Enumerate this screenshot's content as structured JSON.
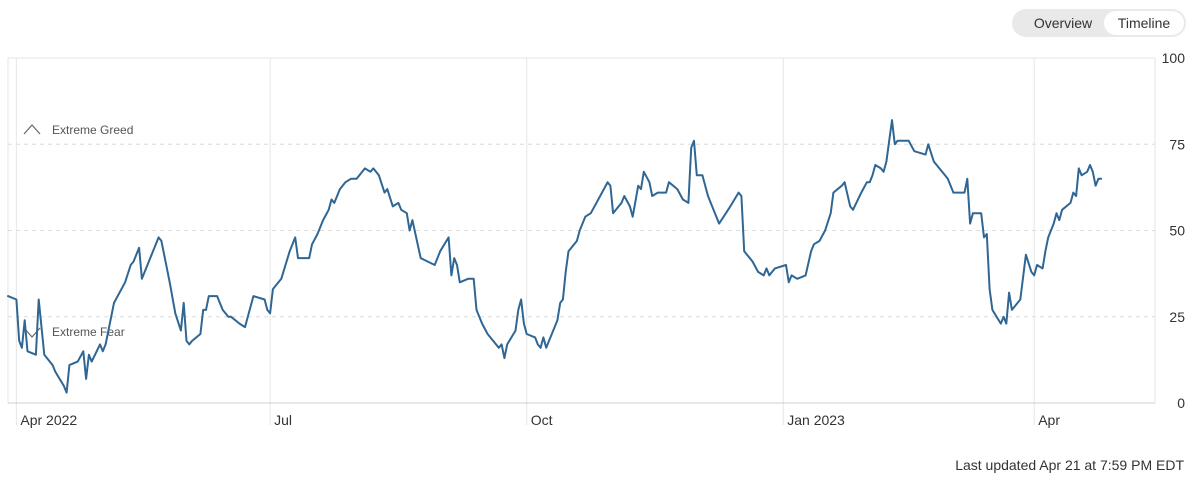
{
  "view_toggle": {
    "overview_label": "Overview",
    "timeline_label": "Timeline",
    "selected": "Timeline"
  },
  "footer": {
    "last_updated": "Last updated Apr 21 at 7:59 PM EDT"
  },
  "colors": {
    "line": "#2f6693",
    "grid": "#e6e6e6",
    "dash": "#dcdcdc",
    "zone_text": "#555555"
  },
  "chart_data": {
    "type": "line",
    "title": "",
    "xlabel": "",
    "ylabel": "",
    "ylim": [
      0,
      100
    ],
    "y_ticks": [
      0,
      25,
      50,
      75,
      100
    ],
    "x_range": [
      "2022-03-29",
      "2023-04-21"
    ],
    "x_ticks": [
      {
        "date": "2022-04-01",
        "label": "Apr 2022"
      },
      {
        "date": "2022-07-01",
        "label": "Jul"
      },
      {
        "date": "2022-10-01",
        "label": "Oct"
      },
      {
        "date": "2023-01-01",
        "label": "Jan 2023"
      },
      {
        "date": "2023-04-01",
        "label": "Apr"
      }
    ],
    "zones": [
      {
        "label": "Extreme Greed",
        "direction": "up"
      },
      {
        "label": "Extreme Fear",
        "direction": "down"
      }
    ],
    "grid": {
      "vertical": true,
      "horizontal_dashed": [
        25,
        50,
        75
      ]
    },
    "series": [
      {
        "points": [
          [
            "2022-03-29",
            31
          ],
          [
            "2022-04-01",
            30
          ],
          [
            "2022-04-02",
            18
          ],
          [
            "2022-04-03",
            16
          ],
          [
            "2022-04-04",
            24
          ],
          [
            "2022-04-05",
            15
          ],
          [
            "2022-04-08",
            14
          ],
          [
            "2022-04-09",
            30
          ],
          [
            "2022-04-11",
            14
          ],
          [
            "2022-04-14",
            11
          ],
          [
            "2022-04-15",
            9
          ],
          [
            "2022-04-18",
            5
          ],
          [
            "2022-04-19",
            3
          ],
          [
            "2022-04-20",
            11
          ],
          [
            "2022-04-23",
            12
          ],
          [
            "2022-04-25",
            15
          ],
          [
            "2022-04-26",
            7
          ],
          [
            "2022-04-27",
            14
          ],
          [
            "2022-04-28",
            12
          ],
          [
            "2022-05-01",
            17
          ],
          [
            "2022-05-02",
            15
          ],
          [
            "2022-05-03",
            17
          ],
          [
            "2022-05-06",
            29
          ],
          [
            "2022-05-10",
            35
          ],
          [
            "2022-05-12",
            40
          ],
          [
            "2022-05-13",
            41
          ],
          [
            "2022-05-15",
            45
          ],
          [
            "2022-05-16",
            36
          ],
          [
            "2022-05-20",
            44
          ],
          [
            "2022-05-22",
            48
          ],
          [
            "2022-05-23",
            47
          ],
          [
            "2022-05-26",
            35
          ],
          [
            "2022-05-28",
            26
          ],
          [
            "2022-05-30",
            21
          ],
          [
            "2022-05-31",
            29
          ],
          [
            "2022-06-01",
            18
          ],
          [
            "2022-06-02",
            17
          ],
          [
            "2022-06-03",
            18
          ],
          [
            "2022-06-06",
            20
          ],
          [
            "2022-06-07",
            27
          ],
          [
            "2022-06-08",
            27
          ],
          [
            "2022-06-09",
            31
          ],
          [
            "2022-06-12",
            31
          ],
          [
            "2022-06-14",
            27
          ],
          [
            "2022-06-16",
            25
          ],
          [
            "2022-06-17",
            25
          ],
          [
            "2022-06-20",
            23
          ],
          [
            "2022-06-22",
            22
          ],
          [
            "2022-06-25",
            31
          ],
          [
            "2022-06-29",
            30
          ],
          [
            "2022-06-30",
            27
          ],
          [
            "2022-07-01",
            26
          ],
          [
            "2022-07-02",
            33
          ],
          [
            "2022-07-05",
            36
          ],
          [
            "2022-07-08",
            44
          ],
          [
            "2022-07-10",
            48
          ],
          [
            "2022-07-11",
            42
          ],
          [
            "2022-07-15",
            42
          ],
          [
            "2022-07-16",
            46
          ],
          [
            "2022-07-18",
            49
          ],
          [
            "2022-07-20",
            53
          ],
          [
            "2022-07-22",
            56
          ],
          [
            "2022-07-23",
            59
          ],
          [
            "2022-07-24",
            58
          ],
          [
            "2022-07-26",
            62
          ],
          [
            "2022-07-28",
            64
          ],
          [
            "2022-07-30",
            65
          ],
          [
            "2022-08-01",
            65
          ],
          [
            "2022-08-02",
            66
          ],
          [
            "2022-08-04",
            68
          ],
          [
            "2022-08-06",
            67
          ],
          [
            "2022-08-07",
            68
          ],
          [
            "2022-08-09",
            66
          ],
          [
            "2022-08-11",
            61
          ],
          [
            "2022-08-12",
            62
          ],
          [
            "2022-08-14",
            57
          ],
          [
            "2022-08-16",
            58
          ],
          [
            "2022-08-17",
            56
          ],
          [
            "2022-08-19",
            55
          ],
          [
            "2022-08-20",
            50
          ],
          [
            "2022-08-21",
            53
          ],
          [
            "2022-08-24",
            42
          ],
          [
            "2022-08-29",
            40
          ],
          [
            "2022-08-31",
            44
          ],
          [
            "2022-09-03",
            48
          ],
          [
            "2022-09-04",
            37
          ],
          [
            "2022-09-05",
            42
          ],
          [
            "2022-09-06",
            40
          ],
          [
            "2022-09-07",
            35
          ],
          [
            "2022-09-10",
            36
          ],
          [
            "2022-09-12",
            36
          ],
          [
            "2022-09-13",
            27
          ],
          [
            "2022-09-15",
            23
          ],
          [
            "2022-09-17",
            20
          ],
          [
            "2022-09-19",
            18
          ],
          [
            "2022-09-21",
            16
          ],
          [
            "2022-09-22",
            17
          ],
          [
            "2022-09-23",
            13
          ],
          [
            "2022-09-24",
            17
          ],
          [
            "2022-09-27",
            21
          ],
          [
            "2022-09-28",
            27
          ],
          [
            "2022-09-29",
            30
          ],
          [
            "2022-09-30",
            23
          ],
          [
            "2022-10-01",
            20
          ],
          [
            "2022-10-04",
            19
          ],
          [
            "2022-10-05",
            17
          ],
          [
            "2022-10-06",
            16
          ],
          [
            "2022-10-07",
            19
          ],
          [
            "2022-10-08",
            16
          ],
          [
            "2022-10-12",
            24
          ],
          [
            "2022-10-13",
            29
          ],
          [
            "2022-10-14",
            30
          ],
          [
            "2022-10-15",
            38
          ],
          [
            "2022-10-16",
            44
          ],
          [
            "2022-10-19",
            47
          ],
          [
            "2022-10-20",
            50
          ],
          [
            "2022-10-22",
            54
          ],
          [
            "2022-10-24",
            55
          ],
          [
            "2022-10-28",
            61
          ],
          [
            "2022-10-30",
            64
          ],
          [
            "2022-10-31",
            63
          ],
          [
            "2022-11-01",
            55
          ],
          [
            "2022-11-02",
            56
          ],
          [
            "2022-11-04",
            58
          ],
          [
            "2022-11-05",
            60
          ],
          [
            "2022-11-07",
            57
          ],
          [
            "2022-11-08",
            54
          ],
          [
            "2022-11-10",
            63
          ],
          [
            "2022-11-11",
            62
          ],
          [
            "2022-11-12",
            67
          ],
          [
            "2022-11-14",
            64
          ],
          [
            "2022-11-15",
            60
          ],
          [
            "2022-11-17",
            61
          ],
          [
            "2022-11-20",
            61
          ],
          [
            "2022-11-21",
            64
          ],
          [
            "2022-11-24",
            62
          ],
          [
            "2022-11-26",
            59
          ],
          [
            "2022-11-28",
            58
          ],
          [
            "2022-11-29",
            74
          ],
          [
            "2022-11-30",
            76
          ],
          [
            "2022-12-01",
            66
          ],
          [
            "2022-12-03",
            66
          ],
          [
            "2022-12-05",
            60
          ],
          [
            "2022-12-09",
            52
          ],
          [
            "2022-12-13",
            57
          ],
          [
            "2022-12-16",
            61
          ],
          [
            "2022-12-17",
            60
          ],
          [
            "2022-12-18",
            44
          ],
          [
            "2022-12-21",
            41
          ],
          [
            "2022-12-23",
            38
          ],
          [
            "2022-12-25",
            37
          ],
          [
            "2022-12-26",
            39
          ],
          [
            "2022-12-27",
            37
          ],
          [
            "2022-12-29",
            39
          ],
          [
            "2023-01-02",
            40
          ],
          [
            "2023-01-03",
            35
          ],
          [
            "2023-01-04",
            37
          ],
          [
            "2023-01-06",
            36
          ],
          [
            "2023-01-09",
            37
          ],
          [
            "2023-01-11",
            44
          ],
          [
            "2023-01-12",
            46
          ],
          [
            "2023-01-14",
            47
          ],
          [
            "2023-01-16",
            50
          ],
          [
            "2023-01-18",
            55
          ],
          [
            "2023-01-19",
            61
          ],
          [
            "2023-01-22",
            63
          ],
          [
            "2023-01-23",
            64
          ],
          [
            "2023-01-25",
            57
          ],
          [
            "2023-01-26",
            56
          ],
          [
            "2023-01-29",
            61
          ],
          [
            "2023-01-31",
            64
          ],
          [
            "2023-02-01",
            64
          ],
          [
            "2023-02-02",
            66
          ],
          [
            "2023-02-03",
            69
          ],
          [
            "2023-02-05",
            68
          ],
          [
            "2023-02-06",
            67
          ],
          [
            "2023-02-07",
            70
          ],
          [
            "2023-02-09",
            82
          ],
          [
            "2023-02-10",
            75
          ],
          [
            "2023-02-11",
            76
          ],
          [
            "2023-02-13",
            76
          ],
          [
            "2023-02-15",
            76
          ],
          [
            "2023-02-17",
            73
          ],
          [
            "2023-02-21",
            72
          ],
          [
            "2023-02-22",
            75
          ],
          [
            "2023-02-24",
            70
          ],
          [
            "2023-02-28",
            66
          ],
          [
            "2023-03-01",
            65
          ],
          [
            "2023-03-03",
            61
          ],
          [
            "2023-03-06",
            61
          ],
          [
            "2023-03-07",
            61
          ],
          [
            "2023-03-08",
            65
          ],
          [
            "2023-03-09",
            52
          ],
          [
            "2023-03-10",
            55
          ],
          [
            "2023-03-13",
            55
          ],
          [
            "2023-03-14",
            48
          ],
          [
            "2023-03-15",
            49
          ],
          [
            "2023-03-16",
            33
          ],
          [
            "2023-03-17",
            27
          ],
          [
            "2023-03-20",
            23
          ],
          [
            "2023-03-21",
            25
          ],
          [
            "2023-03-22",
            23
          ],
          [
            "2023-03-23",
            32
          ],
          [
            "2023-03-24",
            27
          ],
          [
            "2023-03-27",
            30
          ],
          [
            "2023-03-29",
            43
          ],
          [
            "2023-03-31",
            38
          ],
          [
            "2023-04-01",
            37
          ],
          [
            "2023-04-02",
            40
          ],
          [
            "2023-04-04",
            39
          ],
          [
            "2023-04-05",
            44
          ],
          [
            "2023-04-06",
            48
          ],
          [
            "2023-04-08",
            52
          ],
          [
            "2023-04-09",
            55
          ],
          [
            "2023-04-10",
            53
          ],
          [
            "2023-04-11",
            56
          ],
          [
            "2023-04-14",
            58
          ],
          [
            "2023-04-15",
            61
          ],
          [
            "2023-04-16",
            60
          ],
          [
            "2023-04-17",
            68
          ],
          [
            "2023-04-18",
            66
          ],
          [
            "2023-04-20",
            67
          ],
          [
            "2023-04-21",
            69
          ],
          [
            "2023-04-22",
            67
          ],
          [
            "2023-04-23",
            63
          ],
          [
            "2023-04-24",
            65
          ],
          [
            "2023-04-25",
            65
          ]
        ]
      }
    ]
  }
}
